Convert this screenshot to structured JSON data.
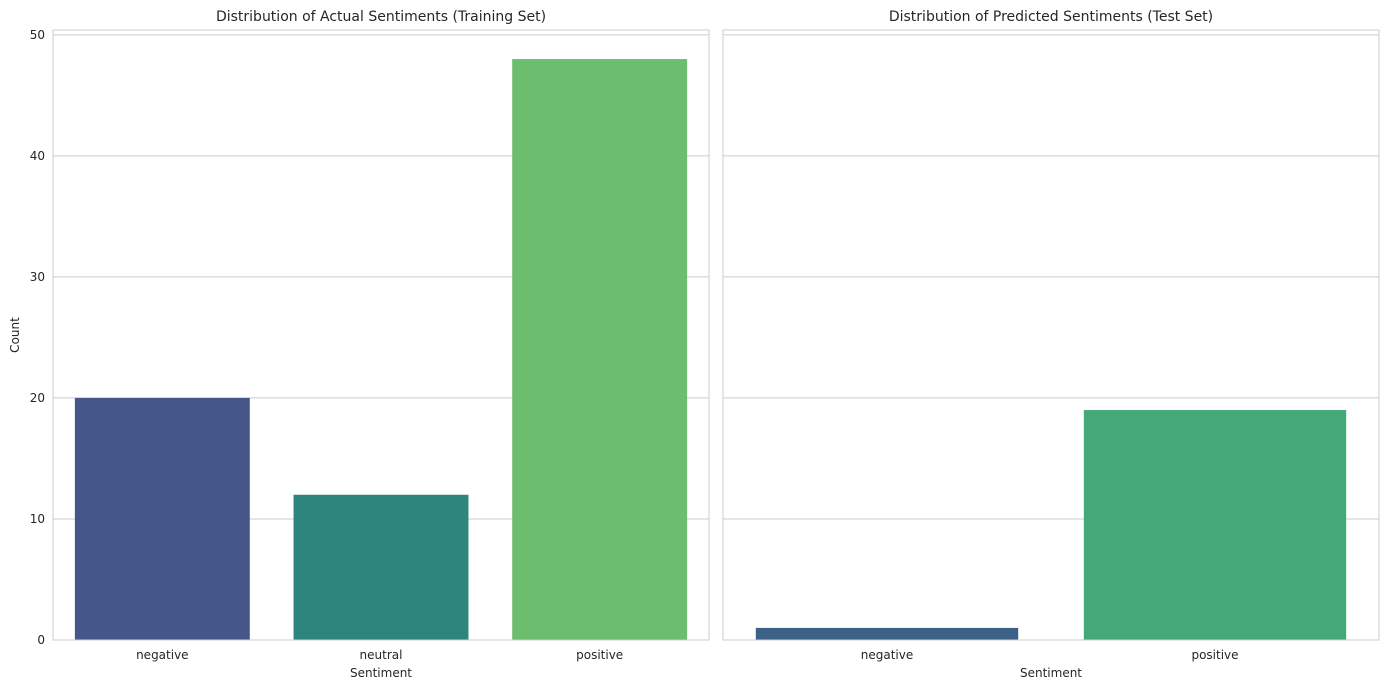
{
  "chart_data": [
    {
      "type": "bar",
      "title": "Distribution of Actual Sentiments (Training Set)",
      "xlabel": "Sentiment",
      "ylabel": "Count",
      "categories": [
        "negative",
        "neutral",
        "positive"
      ],
      "values": [
        20,
        12,
        48
      ],
      "colors": [
        "#45578a",
        "#2e857e",
        "#6cbd6d"
      ],
      "ylim": [
        0,
        50.4
      ],
      "yticks": [
        0,
        10,
        20,
        30,
        40,
        50
      ],
      "grid": true,
      "legend": "none"
    },
    {
      "type": "bar",
      "title": "Distribution of Predicted Sentiments (Test Set)",
      "xlabel": "Sentiment",
      "ylabel": "",
      "categories": [
        "negative",
        "positive"
      ],
      "values": [
        1,
        19
      ],
      "colors": [
        "#3b6187",
        "#45a878"
      ],
      "ylim": [
        0,
        50.4
      ],
      "yticks": [
        0,
        10,
        20,
        30,
        40,
        50
      ],
      "grid": true,
      "legend": "none",
      "sharey": true
    }
  ]
}
